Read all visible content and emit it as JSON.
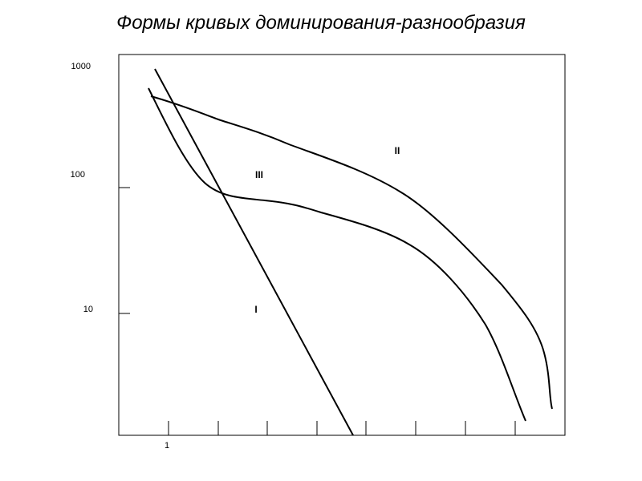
{
  "title": "Формы кривых доминирования-разнообразия",
  "y_axis": {
    "labels": [
      "1000",
      "100",
      "10"
    ]
  },
  "x_axis": {
    "labels": [
      "1"
    ]
  },
  "curves": [
    {
      "label": "I"
    },
    {
      "label": "II"
    },
    {
      "label": "III"
    }
  ]
}
